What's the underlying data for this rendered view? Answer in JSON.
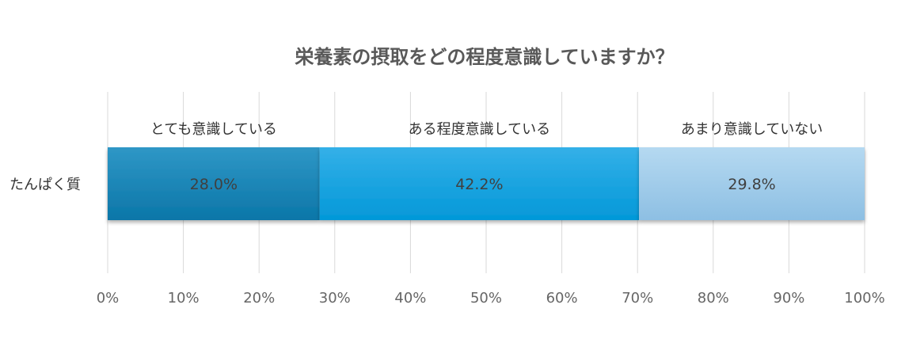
{
  "chart_data": {
    "type": "bar",
    "orientation": "horizontal",
    "stacked": "percent",
    "title": "栄養素の摂取をどの程度意識していますか？",
    "categories": [
      "たんぱく質"
    ],
    "series": [
      {
        "name": "とても意識している",
        "values": [
          28.0
        ],
        "label": "28.0%",
        "color": "#1283B5"
      },
      {
        "name": "ある程度意識している",
        "values": [
          42.2
        ],
        "label": "42.2%",
        "color": "#1AA3E0"
      },
      {
        "name": "あまり意識していない",
        "values": [
          29.8
        ],
        "label": "29.8%",
        "color": "#9DCBEA"
      }
    ],
    "xlim": [
      0,
      100
    ],
    "xticks": [
      "0%",
      "10%",
      "20%",
      "30%",
      "40%",
      "50%",
      "60%",
      "70%",
      "80%",
      "90%",
      "100%"
    ],
    "grid": true,
    "legend": "segment labels above bar"
  }
}
